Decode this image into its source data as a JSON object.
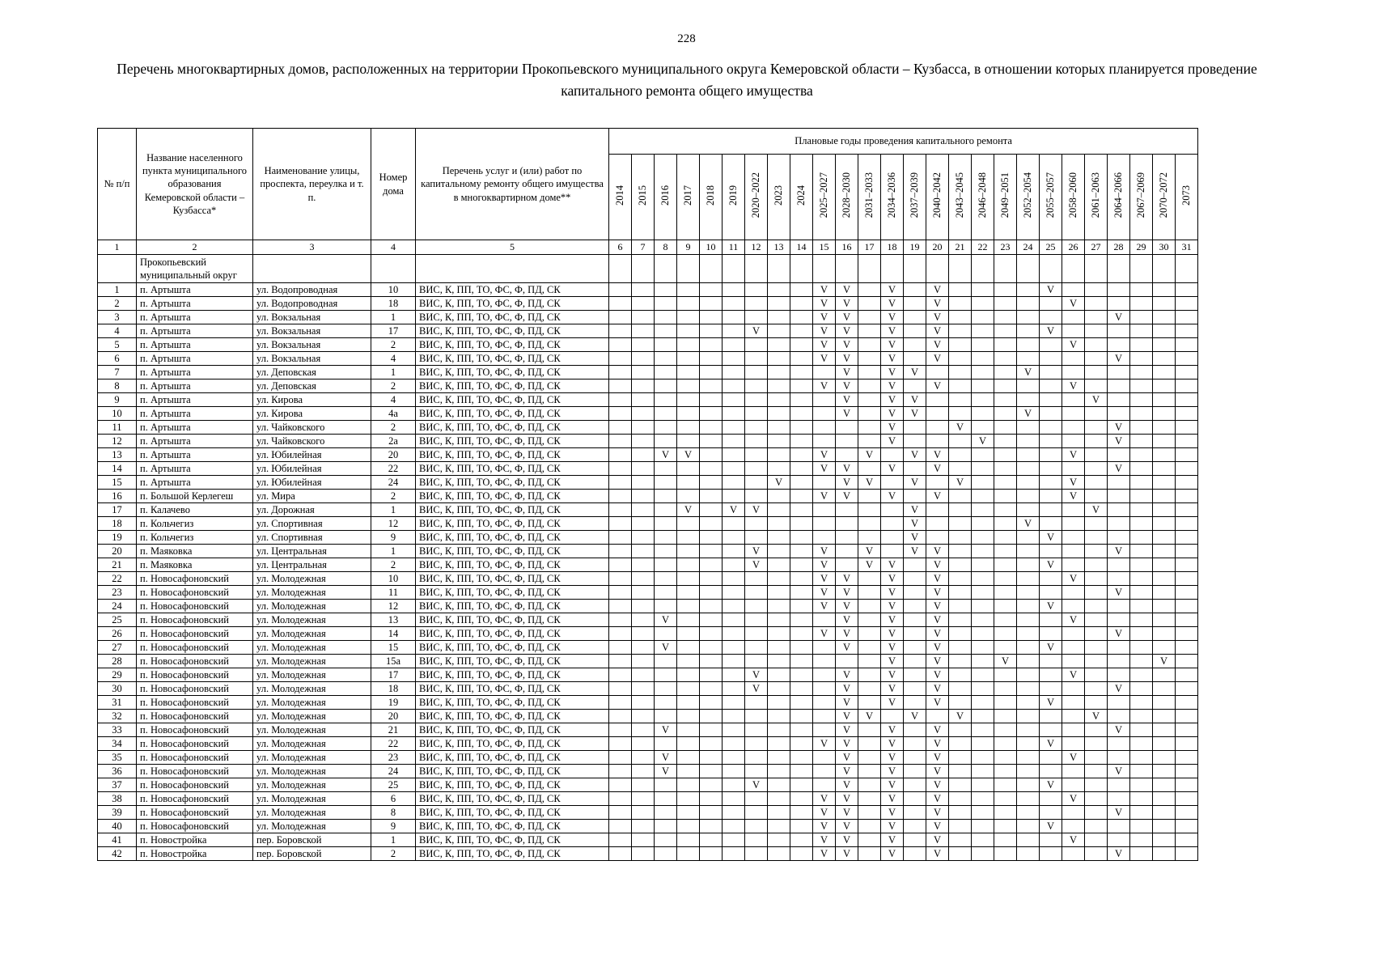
{
  "page": {
    "number": "228",
    "title": "Перечень многоквартирных домов, расположенных на территории Прокопьевского муниципального округа Кемеровской области – Кузбасса, в отношении которых планируется проведение капитального ремонта общего имущества"
  },
  "table": {
    "headers": {
      "num": "№ п/п",
      "settlement": "Название населенного пункта муниципального образования Кемеровской области – Кузбасса*",
      "street": "Наименование улицы, проспекта, переулка и т. п.",
      "house": "Номер дома",
      "works": "Перечень услуг и (или) работ по капитальному ремонту общего имущества в многоквартирном доме**",
      "years_group": "Плановые годы проведения капитального ремонта"
    },
    "years": [
      "2014",
      "2015",
      "2016",
      "2017",
      "2018",
      "2019",
      "2020–2022",
      "2023",
      "2024",
      "2025–2027",
      "2028–2030",
      "2031–2033",
      "2034–2036",
      "2037–2039",
      "2040–2042",
      "2043–2045",
      "2046–2048",
      "2049–2051",
      "2052–2054",
      "2055–2057",
      "2058–2060",
      "2061–2063",
      "2064–2066",
      "2067–2069",
      "2070–2072",
      "2073"
    ],
    "column_numbers": [
      "1",
      "2",
      "3",
      "4",
      "5",
      "6",
      "7",
      "8",
      "9",
      "10",
      "11",
      "12",
      "13",
      "14",
      "15",
      "16",
      "17",
      "18",
      "19",
      "20",
      "21",
      "22",
      "23",
      "24",
      "25",
      "26",
      "27",
      "28",
      "29",
      "30",
      "31"
    ],
    "group_label": "Прокопьевский муниципальный округ",
    "mark": "V",
    "rows": [
      {
        "n": "1",
        "settlement": "п. Артышта",
        "street": "ул. Водопроводная",
        "house": "10",
        "works": "ВИС, К, ПП, ТО, ФС, Ф, ПД, СК",
        "marks": [
          15,
          16,
          18,
          20,
          25
        ]
      },
      {
        "n": "2",
        "settlement": "п. Артышта",
        "street": "ул. Водопроводная",
        "house": "18",
        "works": "ВИС, К, ПП, ТО, ФС, Ф, ПД, СК",
        "marks": [
          15,
          16,
          18,
          20,
          26
        ]
      },
      {
        "n": "3",
        "settlement": "п. Артышта",
        "street": "ул. Вокзальная",
        "house": "1",
        "works": "ВИС, К, ПП, ТО, ФС, Ф, ПД, СК",
        "marks": [
          15,
          16,
          18,
          20,
          28
        ]
      },
      {
        "n": "4",
        "settlement": "п. Артышта",
        "street": "ул. Вокзальная",
        "house": "17",
        "works": "ВИС, К, ПП, ТО, ФС, Ф, ПД, СК",
        "marks": [
          12,
          15,
          16,
          18,
          20,
          25
        ]
      },
      {
        "n": "5",
        "settlement": "п. Артышта",
        "street": "ул. Вокзальная",
        "house": "2",
        "works": "ВИС, К, ПП, ТО, ФС, Ф, ПД, СК",
        "marks": [
          15,
          16,
          18,
          20,
          26
        ]
      },
      {
        "n": "6",
        "settlement": "п. Артышта",
        "street": "ул. Вокзальная",
        "house": "4",
        "works": "ВИС, К, ПП, ТО, ФС, Ф, ПД, СК",
        "marks": [
          15,
          16,
          18,
          20,
          28
        ]
      },
      {
        "n": "7",
        "settlement": "п. Артышта",
        "street": "ул. Деповская",
        "house": "1",
        "works": "ВИС, К, ПП, ТО, ФС, Ф, ПД, СК",
        "marks": [
          16,
          18,
          19,
          24
        ]
      },
      {
        "n": "8",
        "settlement": "п. Артышта",
        "street": "ул. Деповская",
        "house": "2",
        "works": "ВИС, К, ПП, ТО, ФС, Ф, ПД, СК",
        "marks": [
          15,
          16,
          18,
          20,
          26
        ]
      },
      {
        "n": "9",
        "settlement": "п. Артышта",
        "street": "ул. Кирова",
        "house": "4",
        "works": "ВИС, К, ПП, ТО, ФС, Ф, ПД, СК",
        "marks": [
          16,
          18,
          19,
          27
        ]
      },
      {
        "n": "10",
        "settlement": "п. Артышта",
        "street": "ул. Кирова",
        "house": "4а",
        "works": "ВИС, К, ПП, ТО, ФС, Ф, ПД, СК",
        "marks": [
          16,
          18,
          19,
          24
        ]
      },
      {
        "n": "11",
        "settlement": "п. Артышта",
        "street": "ул. Чайковского",
        "house": "2",
        "works": "ВИС, К, ПП, ТО, ФС, Ф, ПД, СК",
        "marks": [
          18,
          21,
          28
        ]
      },
      {
        "n": "12",
        "settlement": "п. Артышта",
        "street": "ул. Чайковского",
        "house": "2а",
        "works": "ВИС, К, ПП, ТО, ФС, Ф, ПД, СК",
        "marks": [
          18,
          22,
          28
        ]
      },
      {
        "n": "13",
        "settlement": "п. Артышта",
        "street": "ул. Юбилейная",
        "house": "20",
        "works": "ВИС, К, ПП, ТО, ФС, Ф, ПД, СК",
        "marks": [
          8,
          9,
          15,
          17,
          19,
          20,
          26
        ]
      },
      {
        "n": "14",
        "settlement": "п. Артышта",
        "street": "ул. Юбилейная",
        "house": "22",
        "works": "ВИС, К, ПП, ТО, ФС, Ф, ПД, СК",
        "marks": [
          15,
          16,
          18,
          20,
          28
        ]
      },
      {
        "n": "15",
        "settlement": "п. Артышта",
        "street": "ул. Юбилейная",
        "house": "24",
        "works": "ВИС, К, ПП, ТО, ФС, Ф, ПД, СК",
        "marks": [
          13,
          16,
          17,
          19,
          21,
          26
        ]
      },
      {
        "n": "16",
        "settlement": "п. Большой Керлегеш",
        "street": "ул. Мира",
        "house": "2",
        "works": "ВИС, К, ПП, ТО, ФС, Ф, ПД, СК",
        "marks": [
          15,
          16,
          18,
          20,
          26
        ]
      },
      {
        "n": "17",
        "settlement": "п. Калачево",
        "street": "ул. Дорожная",
        "house": "1",
        "works": "ВИС, К, ПП, ТО, ФС, Ф, ПД, СК",
        "marks": [
          9,
          11,
          12,
          19,
          27
        ]
      },
      {
        "n": "18",
        "settlement": "п. Кольчегиз",
        "street": "ул. Спортивная",
        "house": "12",
        "works": "ВИС, К, ПП, ТО, ФС, Ф, ПД, СК",
        "marks": [
          19,
          24
        ]
      },
      {
        "n": "19",
        "settlement": "п. Кольчегиз",
        "street": "ул. Спортивная",
        "house": "9",
        "works": "ВИС, К, ПП, ТО, ФС, Ф, ПД, СК",
        "marks": [
          19,
          25
        ]
      },
      {
        "n": "20",
        "settlement": "п. Маяковка",
        "street": "ул. Центральная",
        "house": "1",
        "works": "ВИС, К, ПП, ТО, ФС, Ф, ПД, СК",
        "marks": [
          12,
          15,
          17,
          19,
          20,
          28
        ]
      },
      {
        "n": "21",
        "settlement": "п. Маяковка",
        "street": "ул. Центральная",
        "house": "2",
        "works": "ВИС, К, ПП, ТО, ФС, Ф, ПД, СК",
        "marks": [
          12,
          15,
          17,
          18,
          20,
          25
        ]
      },
      {
        "n": "22",
        "settlement": "п. Новосафоновский",
        "street": "ул. Молодежная",
        "house": "10",
        "works": "ВИС, К, ПП, ТО, ФС, Ф, ПД, СК",
        "marks": [
          15,
          16,
          18,
          20,
          26
        ]
      },
      {
        "n": "23",
        "settlement": "п. Новосафоновский",
        "street": "ул. Молодежная",
        "house": "11",
        "works": "ВИС, К, ПП, ТО, ФС, Ф, ПД, СК",
        "marks": [
          15,
          16,
          18,
          20,
          28
        ]
      },
      {
        "n": "24",
        "settlement": "п. Новосафоновский",
        "street": "ул. Молодежная",
        "house": "12",
        "works": "ВИС, К, ПП, ТО, ФС, Ф, ПД, СК",
        "marks": [
          15,
          16,
          18,
          20,
          25
        ]
      },
      {
        "n": "25",
        "settlement": "п. Новосафоновский",
        "street": "ул. Молодежная",
        "house": "13",
        "works": "ВИС, К, ПП, ТО, ФС, Ф, ПД, СК",
        "marks": [
          8,
          16,
          18,
          20,
          26
        ]
      },
      {
        "n": "26",
        "settlement": "п. Новосафоновский",
        "street": "ул. Молодежная",
        "house": "14",
        "works": "ВИС, К, ПП, ТО, ФС, Ф, ПД, СК",
        "marks": [
          15,
          16,
          18,
          20,
          28
        ]
      },
      {
        "n": "27",
        "settlement": "п. Новосафоновский",
        "street": "ул. Молодежная",
        "house": "15",
        "works": "ВИС, К, ПП, ТО, ФС, Ф, ПД, СК",
        "marks": [
          8,
          16,
          18,
          20,
          25
        ]
      },
      {
        "n": "28",
        "settlement": "п. Новосафоновский",
        "street": "ул. Молодежная",
        "house": "15а",
        "works": "ВИС, К, ПП, ТО, ФС, Ф, ПД, СК",
        "marks": [
          18,
          20,
          23,
          30
        ]
      },
      {
        "n": "29",
        "settlement": "п. Новосафоновский",
        "street": "ул. Молодежная",
        "house": "17",
        "works": "ВИС, К, ПП, ТО, ФС, Ф, ПД, СК",
        "marks": [
          12,
          16,
          18,
          20,
          26
        ]
      },
      {
        "n": "30",
        "settlement": "п. Новосафоновский",
        "street": "ул. Молодежная",
        "house": "18",
        "works": "ВИС, К, ПП, ТО, ФС, Ф, ПД, СК",
        "marks": [
          12,
          16,
          18,
          20,
          28
        ]
      },
      {
        "n": "31",
        "settlement": "п. Новосафоновский",
        "street": "ул. Молодежная",
        "house": "19",
        "works": "ВИС, К, ПП, ТО, ФС, Ф, ПД, СК",
        "marks": [
          16,
          18,
          20,
          25
        ]
      },
      {
        "n": "32",
        "settlement": "п. Новосафоновский",
        "street": "ул. Молодежная",
        "house": "20",
        "works": "ВИС, К, ПП, ТО, ФС, Ф, ПД, СК",
        "marks": [
          16,
          17,
          19,
          21,
          27
        ]
      },
      {
        "n": "33",
        "settlement": "п. Новосафоновский",
        "street": "ул. Молодежная",
        "house": "21",
        "works": "ВИС, К, ПП, ТО, ФС, Ф, ПД, СК",
        "marks": [
          8,
          16,
          18,
          20,
          28
        ]
      },
      {
        "n": "34",
        "settlement": "п. Новосафоновский",
        "street": "ул. Молодежная",
        "house": "22",
        "works": "ВИС, К, ПП, ТО, ФС, Ф, ПД, СК",
        "marks": [
          15,
          16,
          18,
          20,
          25
        ]
      },
      {
        "n": "35",
        "settlement": "п. Новосафоновский",
        "street": "ул. Молодежная",
        "house": "23",
        "works": "ВИС, К, ПП, ТО, ФС, Ф, ПД, СК",
        "marks": [
          8,
          16,
          18,
          20,
          26
        ]
      },
      {
        "n": "36",
        "settlement": "п. Новосафоновский",
        "street": "ул. Молодежная",
        "house": "24",
        "works": "ВИС, К, ПП, ТО, ФС, Ф, ПД, СК",
        "marks": [
          8,
          16,
          18,
          20,
          28
        ]
      },
      {
        "n": "37",
        "settlement": "п. Новосафоновский",
        "street": "ул. Молодежная",
        "house": "25",
        "works": "ВИС, К, ПП, ТО, ФС, Ф, ПД, СК",
        "marks": [
          12,
          16,
          18,
          20,
          25
        ]
      },
      {
        "n": "38",
        "settlement": "п. Новосафоновский",
        "street": "ул. Молодежная",
        "house": "6",
        "works": "ВИС, К, ПП, ТО, ФС, Ф, ПД, СК",
        "marks": [
          15,
          16,
          18,
          20,
          26
        ]
      },
      {
        "n": "39",
        "settlement": "п. Новосафоновский",
        "street": "ул. Молодежная",
        "house": "8",
        "works": "ВИС, К, ПП, ТО, ФС, Ф, ПД, СК",
        "marks": [
          15,
          16,
          18,
          20,
          28
        ]
      },
      {
        "n": "40",
        "settlement": "п. Новосафоновский",
        "street": "ул. Молодежная",
        "house": "9",
        "works": "ВИС, К, ПП, ТО, ФС, Ф, ПД, СК",
        "marks": [
          15,
          16,
          18,
          20,
          25
        ]
      },
      {
        "n": "41",
        "settlement": "п. Новостройка",
        "street": "пер. Боровской",
        "house": "1",
        "works": "ВИС, К, ПП, ТО, ФС, Ф, ПД, СК",
        "marks": [
          15,
          16,
          18,
          20,
          26
        ]
      },
      {
        "n": "42",
        "settlement": "п. Новостройка",
        "street": "пер. Боровской",
        "house": "2",
        "works": "ВИС, К, ПП, ТО, ФС, Ф, ПД, СК",
        "marks": [
          15,
          16,
          18,
          20,
          28
        ]
      }
    ]
  }
}
